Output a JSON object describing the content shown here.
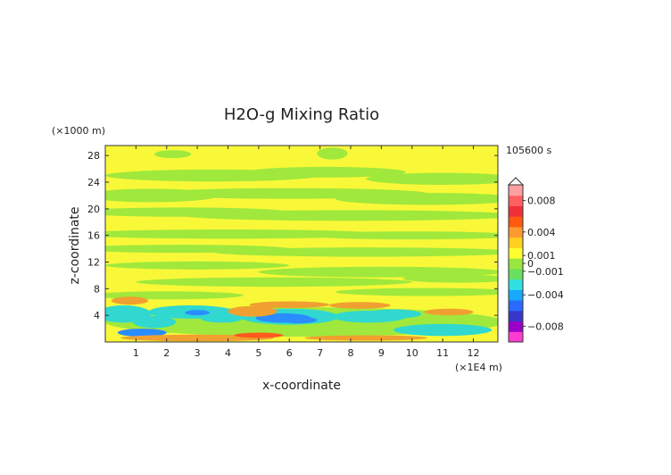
{
  "chart_data": {
    "type": "heatmap",
    "title": "H2O-g Mixing Ratio",
    "xlabel": "x-coordinate",
    "ylabel": "z-coordinate",
    "x_unit": "(×1E4 m)",
    "y_unit": "(×1000 m)",
    "time_label": "105600 s",
    "xlim": [
      0,
      12.8
    ],
    "ylim": [
      0,
      29.5
    ],
    "x_ticks": [
      "1",
      "2",
      "3",
      "4",
      "5",
      "6",
      "7",
      "8",
      "9",
      "10",
      "11",
      "12"
    ],
    "y_ticks": [
      "4",
      "8",
      "12",
      "16",
      "20",
      "24",
      "28"
    ],
    "colorbar": {
      "labels": [
        {
          "text": "0.008",
          "value": 0.008
        },
        {
          "text": "0.004",
          "value": 0.004
        },
        {
          "text": "0.001",
          "value": 0.001
        },
        {
          "text": "0",
          "value": 0
        },
        {
          "text": "−0.001",
          "value": -0.001
        },
        {
          "text": "−0.004",
          "value": -0.004
        },
        {
          "text": "−0.008",
          "value": -0.008
        }
      ],
      "colors": [
        "#ff3cd0",
        "#9a00c8",
        "#3838c8",
        "#2a6aff",
        "#18a8ff",
        "#30e0e0",
        "#6ae060",
        "#9ae640",
        "#ffff30",
        "#ffd020",
        "#ff9a30",
        "#ff5a10",
        "#f03038",
        "#ff6060",
        "#ffa0a0"
      ]
    },
    "field_colors": {
      "yellow": "#f8f838",
      "green": "#a0e83c",
      "cyan": "#30d8d0",
      "blue": "#2a8cff",
      "orange": "#f0a030",
      "red": "#ff5a20"
    }
  }
}
